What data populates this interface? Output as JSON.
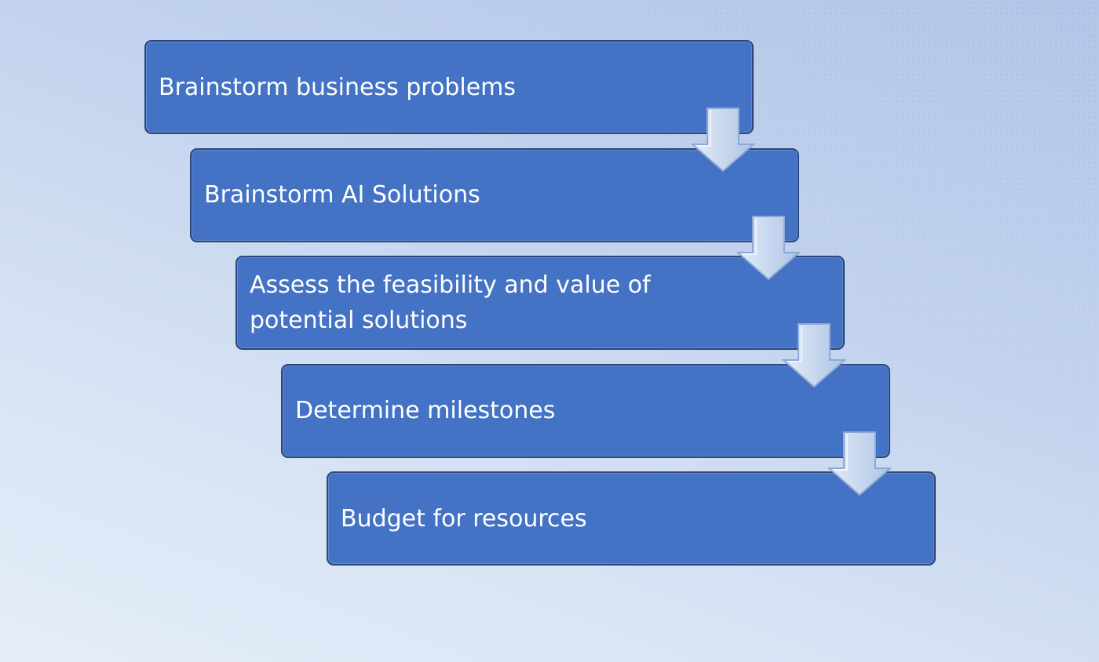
{
  "diagram": {
    "type": "staggered-process-flow",
    "steps": [
      {
        "label": "Brainstorm business problems"
      },
      {
        "label": "Brainstorm AI Solutions"
      },
      {
        "label": "Assess the feasibility and value of potential solutions"
      },
      {
        "label": "Determine milestones"
      },
      {
        "label": "Budget for resources"
      }
    ],
    "connector_icon": "down-arrow-icon",
    "colors": {
      "box_fill": "#4472c4",
      "box_border": "#2b4679",
      "label_text": "#ffffff",
      "arrow_fill": "#c9d8ef",
      "arrow_outline": "#8ea8d6"
    }
  }
}
